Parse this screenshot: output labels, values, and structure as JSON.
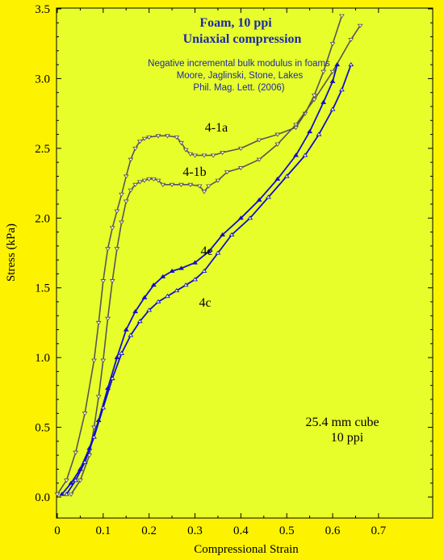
{
  "chart_data": {
    "type": "line",
    "title": "Foam, 10 ppi",
    "subtitle": "Uniaxial compression",
    "reference": [
      "Negative incremental  bulk modulus in foams",
      "Moore, Jaglinski, Stone, Lakes",
      "Phil. Mag. Lett. (2006)"
    ],
    "annotation": [
      "25.4 mm cube",
      "10 ppi"
    ],
    "xlabel": "Compressional Strain",
    "ylabel": "Stress (kPa)",
    "xlim": [
      0,
      0.7
    ],
    "ylim": [
      0,
      3.5
    ],
    "xticks": [
      "0",
      "0.1",
      "0.2",
      "0.3",
      "0.4",
      "0.5",
      "0.6",
      "0.7"
    ],
    "yticks": [
      "0.0",
      "0.5",
      "1.0",
      "1.5",
      "2.0",
      "2.5",
      "3.0",
      "3.5"
    ],
    "colors": {
      "background": "#fdf300",
      "plot_area": "#e8fe2a",
      "gray_series": "#555555",
      "blue_series": "#1010c8",
      "title": "#1c2aa8"
    },
    "series": [
      {
        "name": "4-1a",
        "color": "#555555",
        "marker": "triangle-down-open",
        "x": [
          0.0,
          0.02,
          0.04,
          0.06,
          0.08,
          0.09,
          0.1,
          0.11,
          0.12,
          0.13,
          0.14,
          0.15,
          0.16,
          0.17,
          0.18,
          0.19,
          0.2,
          0.22,
          0.24,
          0.26,
          0.27,
          0.28,
          0.29,
          0.3,
          0.32,
          0.34,
          0.36,
          0.4,
          0.44,
          0.48,
          0.52,
          0.54,
          0.56,
          0.58,
          0.6,
          0.62
        ],
        "y": [
          0.02,
          0.12,
          0.32,
          0.6,
          0.98,
          1.25,
          1.55,
          1.78,
          1.93,
          2.05,
          2.17,
          2.3,
          2.42,
          2.5,
          2.55,
          2.57,
          2.58,
          2.59,
          2.59,
          2.58,
          2.54,
          2.49,
          2.46,
          2.45,
          2.45,
          2.45,
          2.47,
          2.5,
          2.56,
          2.6,
          2.65,
          2.75,
          2.88,
          3.05,
          3.25,
          3.45
        ]
      },
      {
        "name": "4-1b",
        "color": "#555555",
        "marker": "triangle-down-open",
        "x": [
          0.03,
          0.05,
          0.07,
          0.08,
          0.09,
          0.1,
          0.11,
          0.12,
          0.13,
          0.14,
          0.15,
          0.16,
          0.17,
          0.18,
          0.19,
          0.2,
          0.21,
          0.22,
          0.23,
          0.25,
          0.27,
          0.29,
          0.31,
          0.32,
          0.33,
          0.35,
          0.37,
          0.4,
          0.44,
          0.48,
          0.52,
          0.56,
          0.6,
          0.64,
          0.66
        ],
        "y": [
          0.02,
          0.12,
          0.3,
          0.5,
          0.72,
          0.98,
          1.28,
          1.55,
          1.78,
          1.97,
          2.12,
          2.2,
          2.24,
          2.26,
          2.27,
          2.28,
          2.28,
          2.27,
          2.24,
          2.24,
          2.24,
          2.24,
          2.23,
          2.19,
          2.23,
          2.27,
          2.33,
          2.36,
          2.42,
          2.53,
          2.67,
          2.85,
          3.05,
          3.28,
          3.38
        ]
      },
      {
        "name": "4e",
        "color": "#1010c8",
        "marker": "triangle-up-filled",
        "x": [
          0.01,
          0.03,
          0.05,
          0.07,
          0.09,
          0.11,
          0.13,
          0.15,
          0.17,
          0.19,
          0.21,
          0.23,
          0.25,
          0.27,
          0.3,
          0.33,
          0.36,
          0.4,
          0.44,
          0.48,
          0.52,
          0.55,
          0.58,
          0.6,
          0.61
        ],
        "y": [
          0.02,
          0.1,
          0.2,
          0.35,
          0.55,
          0.78,
          1.0,
          1.2,
          1.33,
          1.43,
          1.52,
          1.58,
          1.62,
          1.64,
          1.68,
          1.76,
          1.88,
          2.0,
          2.13,
          2.28,
          2.45,
          2.62,
          2.83,
          2.98,
          3.1
        ]
      },
      {
        "name": "4c",
        "color": "#1010c8",
        "marker": "triangle-up-open",
        "x": [
          0.02,
          0.04,
          0.06,
          0.08,
          0.1,
          0.12,
          0.14,
          0.16,
          0.18,
          0.2,
          0.22,
          0.24,
          0.26,
          0.28,
          0.3,
          0.32,
          0.35,
          0.38,
          0.42,
          0.46,
          0.5,
          0.54,
          0.57,
          0.6,
          0.62,
          0.64
        ],
        "y": [
          0.02,
          0.12,
          0.25,
          0.43,
          0.64,
          0.85,
          1.03,
          1.16,
          1.26,
          1.34,
          1.4,
          1.44,
          1.48,
          1.52,
          1.56,
          1.62,
          1.75,
          1.88,
          2.0,
          2.15,
          2.3,
          2.45,
          2.6,
          2.78,
          2.92,
          3.1
        ]
      }
    ]
  }
}
